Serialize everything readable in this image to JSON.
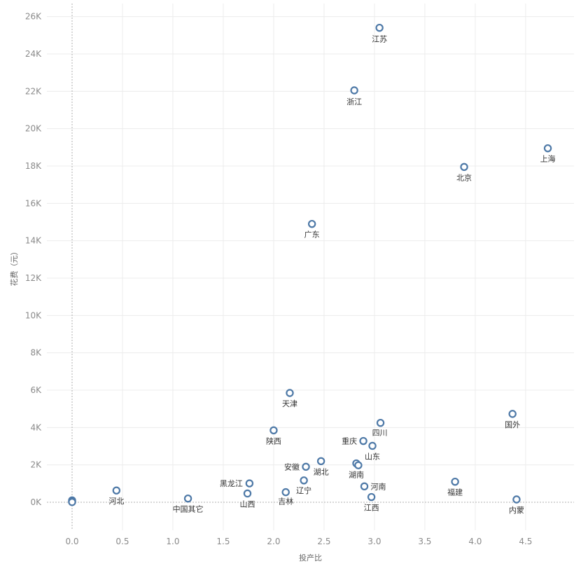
{
  "chart_data": {
    "type": "scatter",
    "xlabel": "投产比",
    "ylabel": "花费（元）",
    "xlim": [
      -0.25,
      4.98
    ],
    "ylim": [
      -1500,
      26700
    ],
    "x_ticks": [
      0.0,
      0.5,
      1.0,
      1.5,
      2.0,
      2.5,
      3.0,
      3.5,
      4.0,
      4.5
    ],
    "x_tick_labels": [
      "0.0",
      "0.5",
      "1.0",
      "1.5",
      "2.0",
      "2.5",
      "3.0",
      "3.5",
      "4.0",
      "4.5"
    ],
    "y_ticks": [
      0,
      2000,
      4000,
      6000,
      8000,
      10000,
      12000,
      14000,
      16000,
      18000,
      20000,
      22000,
      24000,
      26000
    ],
    "y_tick_labels": [
      "0K",
      "2K",
      "4K",
      "6K",
      "8K",
      "10K",
      "12K",
      "14K",
      "16K",
      "18K",
      "20K",
      "22K",
      "24K",
      "26K"
    ],
    "grid": true,
    "marker_color": "#4e79a7",
    "points": [
      {
        "label": "江苏",
        "x": 3.05,
        "y": 25400
      },
      {
        "label": "浙江",
        "x": 2.8,
        "y": 22050
      },
      {
        "label": "上海",
        "x": 4.72,
        "y": 18950
      },
      {
        "label": "北京",
        "x": 3.89,
        "y": 17950
      },
      {
        "label": "广东",
        "x": 2.38,
        "y": 14900
      },
      {
        "label": "天津",
        "x": 2.16,
        "y": 5850
      },
      {
        "label": "国外",
        "x": 4.37,
        "y": 4730
      },
      {
        "label": "四川",
        "x": 3.06,
        "y": 4250
      },
      {
        "label": "陕西",
        "x": 2.0,
        "y": 3850
      },
      {
        "label": "重庆",
        "x": 2.89,
        "y": 3280
      },
      {
        "label": "山东",
        "x": 2.98,
        "y": 3020
      },
      {
        "label": "湖北",
        "x": 2.47,
        "y": 2200
      },
      {
        "label": "湖南",
        "x": 2.82,
        "y": 2080
      },
      {
        "label": "",
        "x": 2.84,
        "y": 1980
      },
      {
        "label": "安徽",
        "x": 2.32,
        "y": 1900
      },
      {
        "label": "辽宁",
        "x": 2.3,
        "y": 1170
      },
      {
        "label": "福建",
        "x": 3.8,
        "y": 1100
      },
      {
        "label": "黑龙江",
        "x": 1.76,
        "y": 1010
      },
      {
        "label": "河南",
        "x": 2.9,
        "y": 850
      },
      {
        "label": "河北",
        "x": 0.44,
        "y": 630
      },
      {
        "label": "吉林",
        "x": 2.12,
        "y": 540
      },
      {
        "label": "山西",
        "x": 1.74,
        "y": 470
      },
      {
        "label": "江西",
        "x": 2.97,
        "y": 280
      },
      {
        "label": "中国其它",
        "x": 1.15,
        "y": 200
      },
      {
        "label": "内蒙",
        "x": 4.41,
        "y": 150
      },
      {
        "label": "",
        "x": 0.0,
        "y": 100
      },
      {
        "label": "",
        "x": 0.0,
        "y": 40
      },
      {
        "label": "",
        "x": 0.0,
        "y": 10
      }
    ]
  }
}
